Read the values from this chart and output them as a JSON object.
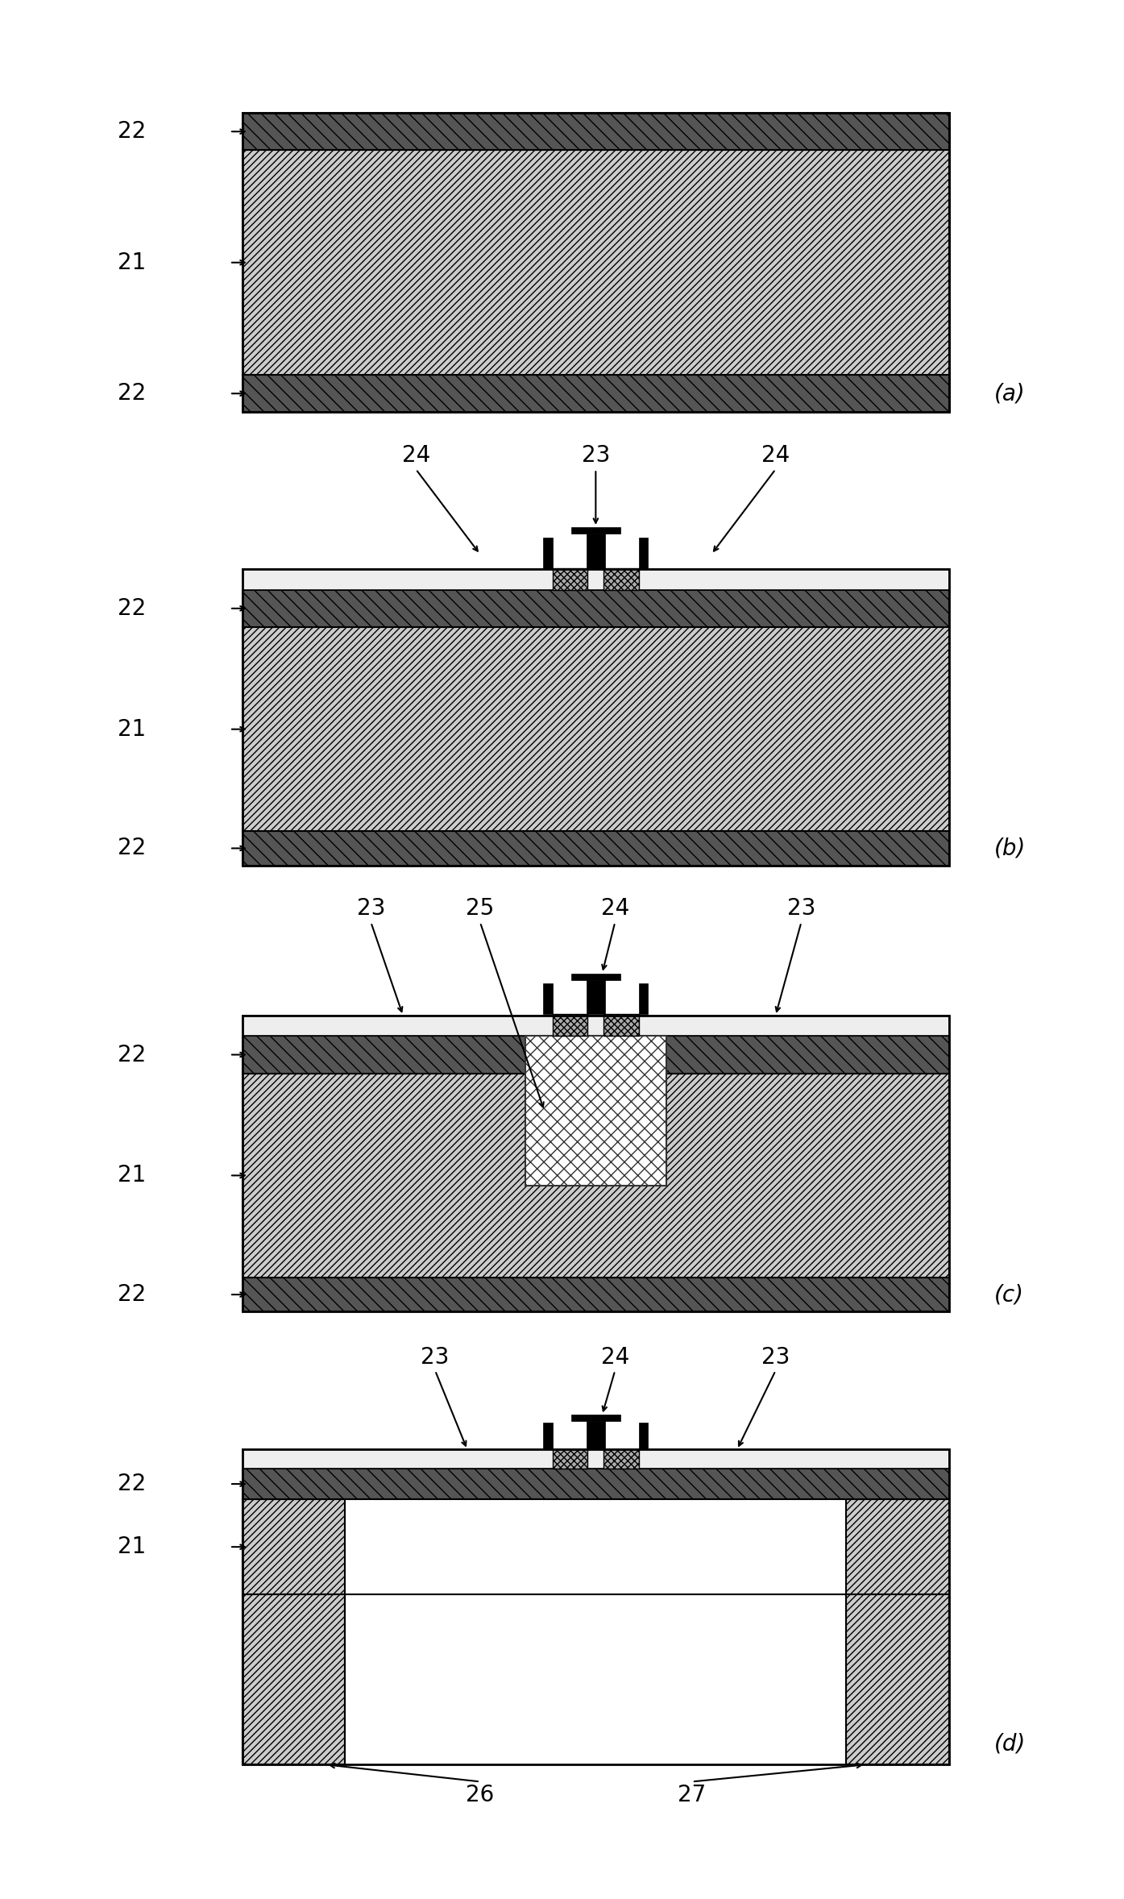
{
  "fig_width": 13.95,
  "fig_height": 23.56,
  "bg_color": "#ffffff",
  "label_fontsize": 20,
  "annot_fontsize": 20,
  "panels": [
    "(a)",
    "(b)",
    "(c)",
    "(d)"
  ],
  "silicon_hatch": "////",
  "dark_hatch": "\\\\",
  "cross_hatch": "xx"
}
